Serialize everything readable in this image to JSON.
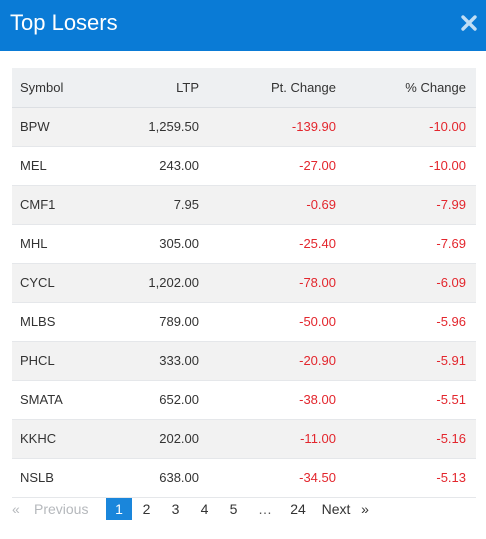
{
  "header": {
    "title": "Top Losers",
    "close_icon": "close-icon"
  },
  "colors": {
    "header_bg": "#0a7bd6",
    "negative": "#e3262d",
    "active_page": "#1a86db"
  },
  "table": {
    "columns": [
      "Symbol",
      "LTP",
      "Pt. Change",
      "% Change"
    ],
    "rows": [
      [
        "BPW",
        "1,259.50",
        "-139.90",
        "-10.00"
      ],
      [
        "MEL",
        "243.00",
        "-27.00",
        "-10.00"
      ],
      [
        "CMF1",
        "7.95",
        "-0.69",
        "-7.99"
      ],
      [
        "MHL",
        "305.00",
        "-25.40",
        "-7.69"
      ],
      [
        "CYCL",
        "1,202.00",
        "-78.00",
        "-6.09"
      ],
      [
        "MLBS",
        "789.00",
        "-50.00",
        "-5.96"
      ],
      [
        "PHCL",
        "333.00",
        "-20.90",
        "-5.91"
      ],
      [
        "SMATA",
        "652.00",
        "-38.00",
        "-5.51"
      ],
      [
        "KKHC",
        "202.00",
        "-11.00",
        "-5.16"
      ],
      [
        "NSLB",
        "638.00",
        "-34.50",
        "-5.13"
      ]
    ]
  },
  "pagination": {
    "first_icon": "«",
    "previous": "Previous",
    "pages": [
      "1",
      "2",
      "3",
      "4",
      "5"
    ],
    "active_page": "1",
    "ellipsis": "…",
    "last_page": "24",
    "next": "Next",
    "last_icon": "»"
  }
}
